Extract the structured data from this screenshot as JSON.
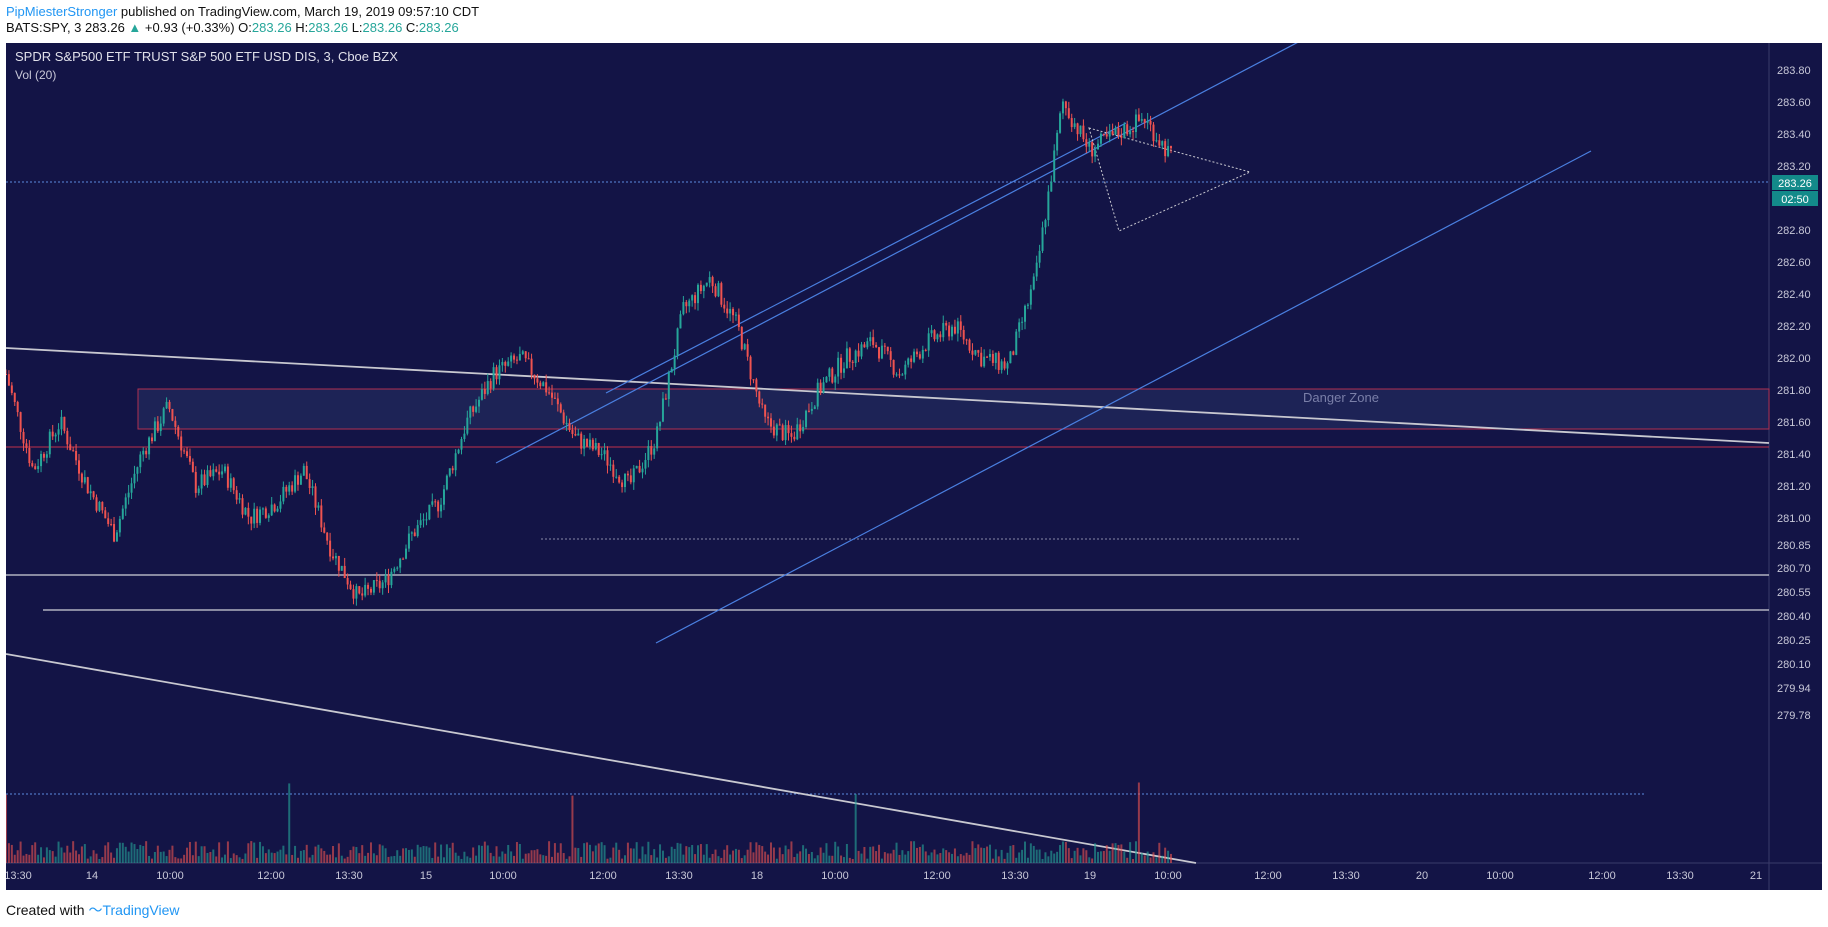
{
  "header": {
    "user": "PipMiesterStronger",
    "published_text": "published on TradingView.com, March 19, 2019 09:57:10 CDT",
    "symbol": "BATS:SPY, 3",
    "last": "283.26",
    "change": "+0.93 (+0.33%)",
    "o_label": "O:",
    "o": "283.26",
    "h_label": "H:",
    "h": "283.26",
    "l_label": "L:",
    "l": "283.26",
    "c_label": "C:",
    "c": "283.26"
  },
  "chart": {
    "title": "SPDR S&P500 ETF TRUST S&P 500 ETF USD DIS, 3, Cboe BZX",
    "volume_label": "Vol (20)",
    "zone_label": "Danger Zone",
    "price_label": "283.26",
    "countdown_label": "02:50",
    "colors": {
      "background": "#131446",
      "up": "#26a69a",
      "down": "#ef5350",
      "trendline": "#4a7fe0",
      "gray_line": "#c8c8d0",
      "zone_border": "#b03050"
    }
  },
  "chart_data": {
    "type": "candlestick",
    "y_axis_ticks": [
      "283.80",
      "283.60",
      "283.40",
      "283.20",
      "283.00",
      "282.80",
      "282.60",
      "282.40",
      "282.20",
      "282.00",
      "281.80",
      "281.60",
      "281.40",
      "281.20",
      "281.00",
      "280.85",
      "280.70",
      "280.55",
      "280.40",
      "280.25",
      "280.10",
      "279.94",
      "279.78"
    ],
    "x_axis_ticks": [
      "13:30",
      "14",
      "10:00",
      "12:00",
      "13:30",
      "15",
      "10:00",
      "12:00",
      "13:30",
      "18",
      "10:00",
      "12:00",
      "13:30",
      "19",
      "10:00",
      "12:00",
      "13:30",
      "20",
      "10:00",
      "12:00",
      "13:30",
      "21"
    ],
    "last_price": 283.26,
    "series": [
      {
        "name": "SPY",
        "close": [
          281.9,
          281.3,
          281.6,
          281.2,
          280.9,
          281.4,
          281.7,
          281.2,
          281.3,
          281.0,
          281.1,
          281.3,
          280.8,
          280.5,
          280.6,
          280.9,
          281.1,
          281.6,
          281.9,
          282.0,
          281.8,
          281.5,
          281.4,
          281.2,
          281.5,
          282.3,
          282.5,
          282.2,
          281.6,
          281.5,
          281.8,
          282.0,
          282.1,
          281.9,
          282.1,
          282.2,
          282.0,
          281.95,
          282.5,
          283.6,
          283.3,
          283.4,
          283.5,
          283.26
        ]
      }
    ]
  }
}
